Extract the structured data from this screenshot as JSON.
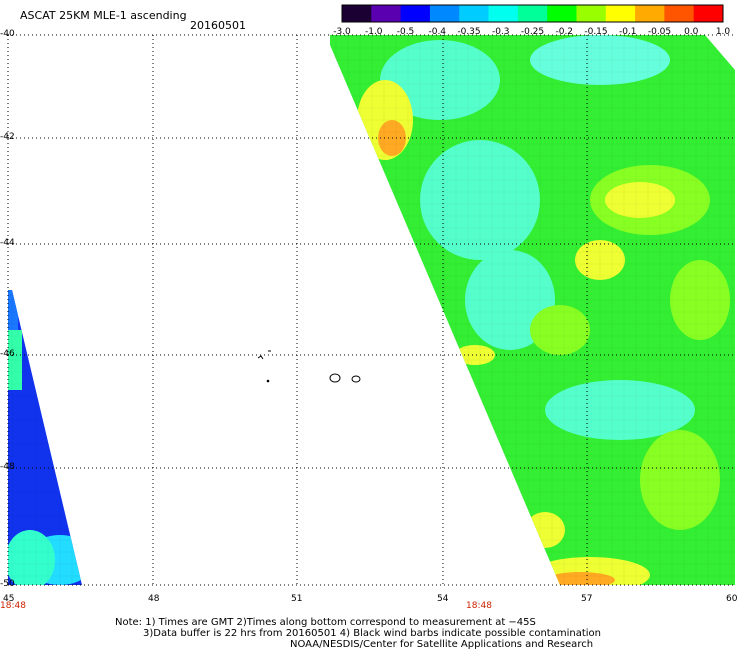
{
  "header": {
    "title": "ASCAT 25KM MLE-1 ascending",
    "date": "20160501"
  },
  "colorbar": {
    "tick_labels": [
      "-3.0",
      "-1.0",
      "-0.5",
      "-0.4",
      "-0.35",
      "-0.3",
      "-0.25",
      "-0.2",
      "-0.15",
      "-0.1",
      "-0.05",
      "0.0",
      "1.0"
    ],
    "colors": [
      "#1a0033",
      "#5a00b0",
      "#0000ff",
      "#0088ff",
      "#00ccff",
      "#00ffee",
      "#00ff99",
      "#00ff00",
      "#99ff00",
      "#ffff00",
      "#ffaa00",
      "#ff5500",
      "#ff0000"
    ]
  },
  "map": {
    "lat_labels": [
      "-40",
      "-42",
      "-44",
      "-46",
      "-48",
      "-50"
    ],
    "lon_labels": [
      "45",
      "48",
      "51",
      "54",
      "57",
      "60"
    ],
    "time_labels": [
      "18:48",
      "18:48"
    ],
    "colors": {
      "cyan": "#55ffcc",
      "green": "#33ee33",
      "lime": "#88ff22",
      "yellow": "#eeff33",
      "orange": "#ffaa22",
      "blue": "#1133ee",
      "grid": "#000000"
    }
  },
  "notes": {
    "line1": "Note: 1) Times are GMT 2)Times along bottom correspond to measurement at −45S",
    "line2": "3)Data buffer is 22 hrs from 20160501 4) Black wind barbs indicate possible contamination",
    "line3": "NOAA/NESDIS/Center for Satellite Applications and Research"
  }
}
